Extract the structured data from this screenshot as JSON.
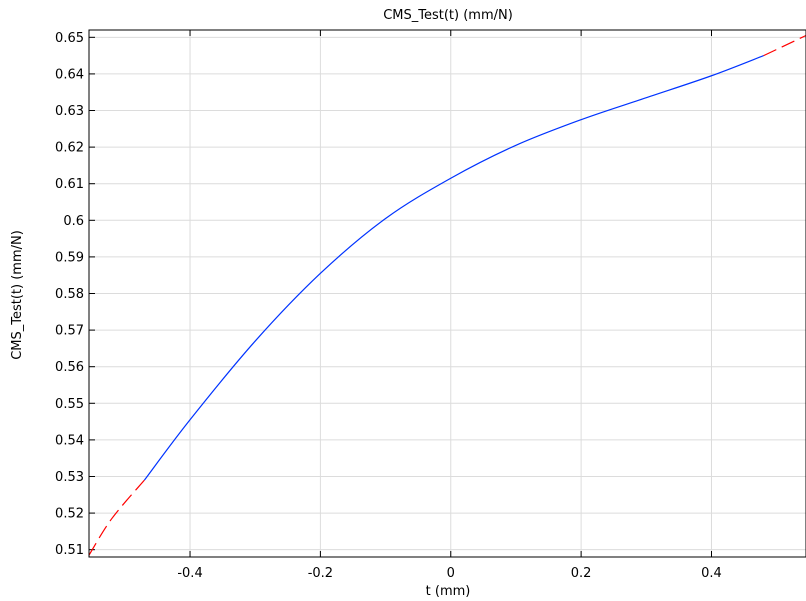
{
  "chart_data": {
    "type": "line",
    "title": "CMS_Test(t) (mm/N)",
    "xlabel": "t (mm)",
    "ylabel": "CMS_Test(t) (mm/N)",
    "xlim": [
      -0.555,
      0.545
    ],
    "ylim": [
      0.508,
      0.652
    ],
    "x_ticks": [
      -0.4,
      -0.2,
      0,
      0.2,
      0.4
    ],
    "x_tick_labels": [
      "-0.4",
      "-0.2",
      "0",
      "0.2",
      "0.4"
    ],
    "y_ticks": [
      0.51,
      0.52,
      0.53,
      0.54,
      0.55,
      0.56,
      0.57,
      0.58,
      0.59,
      0.6,
      0.61,
      0.62,
      0.63,
      0.64,
      0.65
    ],
    "y_tick_labels": [
      "0.51",
      "0.52",
      "0.53",
      "0.54",
      "0.55",
      "0.56",
      "0.57",
      "0.58",
      "0.59",
      "0.6",
      "0.61",
      "0.62",
      "0.63",
      "0.64",
      "0.65"
    ],
    "grid": true,
    "series": [
      {
        "style": "dashed",
        "color": "#ff0000",
        "x": [
          -0.555,
          -0.52,
          -0.47
        ],
        "y": [
          0.5085,
          0.5185,
          0.529
        ]
      },
      {
        "style": "solid",
        "color": "#0033ff",
        "x": [
          -0.47,
          -0.4,
          -0.3,
          -0.2,
          -0.1,
          0,
          0.1,
          0.2,
          0.3,
          0.4,
          0.48
        ],
        "y": [
          0.529,
          0.5455,
          0.567,
          0.5855,
          0.6005,
          0.6115,
          0.6205,
          0.6275,
          0.6335,
          0.6395,
          0.645
        ]
      },
      {
        "style": "dashed",
        "color": "#ff0000",
        "x": [
          0.48,
          0.545
        ],
        "y": [
          0.645,
          0.6505
        ]
      }
    ]
  }
}
